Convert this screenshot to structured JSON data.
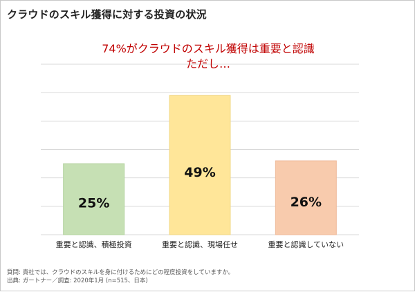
{
  "title": "クラウドのスキル獲得に対する投資の状況",
  "annotation": {
    "line1": "74%がクラウドのスキル獲得は重要と認識",
    "line2": "ただし…"
  },
  "colors": {
    "annotation": "#c00000",
    "grid": "#d9d9d9",
    "bar_fills": [
      "#c6e0b4",
      "#ffe699",
      "#f8cbad"
    ],
    "bar_strokes": [
      "#b4d3a0",
      "#f2d888",
      "#efbb9c"
    ]
  },
  "chart_data": {
    "type": "bar",
    "title": "",
    "xlabel": "",
    "ylabel": "",
    "categories": [
      "重要と認識、積極投資",
      "重要と認識、現場任せ",
      "重要と認識していない"
    ],
    "values": [
      25,
      49,
      26
    ],
    "value_labels": [
      "25%",
      "49%",
      "26%"
    ],
    "ylim": [
      0,
      60
    ],
    "grid": true,
    "legend": "none"
  },
  "footnotes": {
    "question": "質問: 貴社では、クラウドのスキルを身に付けるためにどの程度投資をしていますか。",
    "source": "出典: ガートナー／調査: 2020年1月 (n=515、日本)"
  }
}
